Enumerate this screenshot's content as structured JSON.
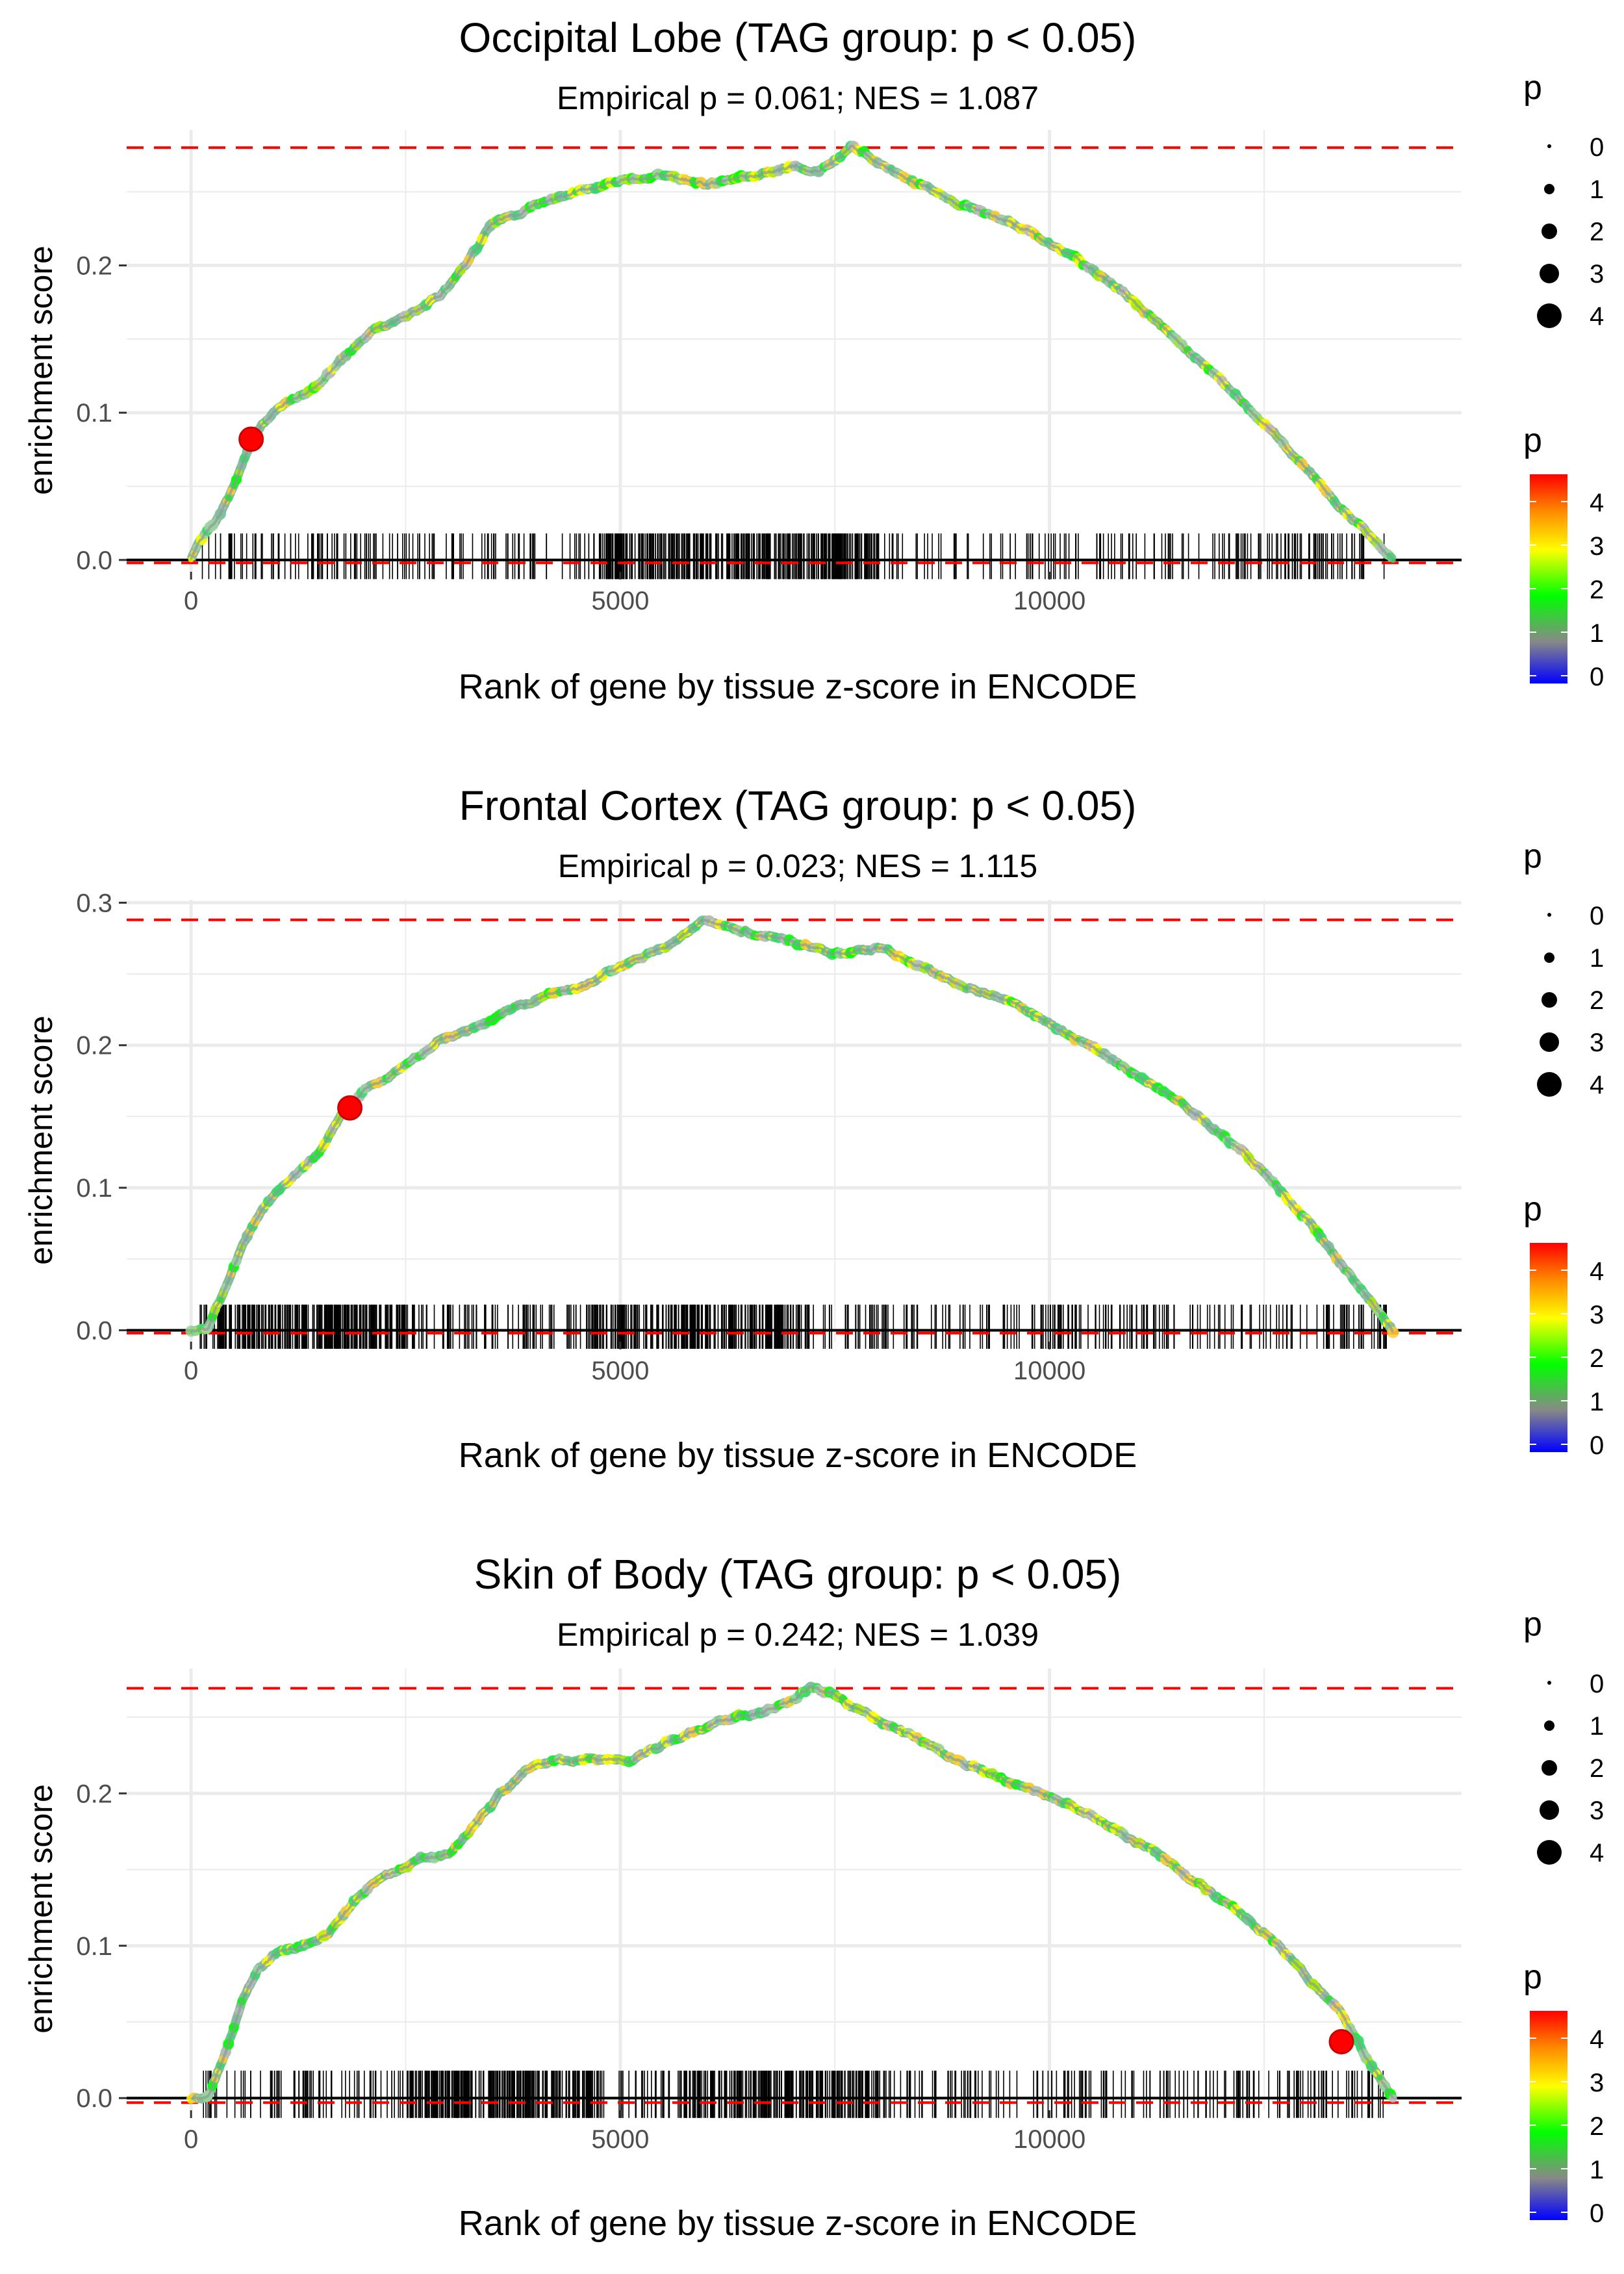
{
  "colors": {
    "gridline": "#ebebeb",
    "hline_dashed": "#ff0000",
    "zero_line": "#000000",
    "ticks": "#000000",
    "highlight_point": "#ff0000",
    "highlight_stroke": "#cc0000",
    "gradient": [
      "#0000ff",
      "#888888",
      "#00ff00",
      "#ffff00",
      "#ff8c00",
      "#ff0000"
    ]
  },
  "chart_data": [
    {
      "type": "line",
      "title": "Occipital Lobe (TAG group: p < 0.05)",
      "subtitle": "Empirical p = 0.061; NES = 1.087",
      "xlabel": "Rank of gene by tissue z-score in ENCODE",
      "ylabel": "enrichment score",
      "xlim": [
        -750,
        14800
      ],
      "ylim": [
        -0.008,
        0.292
      ],
      "x_ticks": [
        0,
        5000,
        10000
      ],
      "x_tick_labels": [
        "0",
        "5000",
        "10000"
      ],
      "y_ticks": [
        0.0,
        0.1,
        0.2
      ],
      "y_tick_labels": [
        "0.0",
        "0.1",
        "0.2"
      ],
      "max_es": 0.28,
      "min_es": -0.002,
      "curve": {
        "x": [
          0,
          100,
          300,
          500,
          700,
          900,
          1200,
          1500,
          1800,
          2100,
          2500,
          2900,
          3200,
          3500,
          4000,
          4500,
          5000,
          5500,
          6000,
          6500,
          7000,
          7300,
          7550,
          7700,
          8000,
          8500,
          9000,
          9500,
          10000,
          10500,
          11000,
          11500,
          12000,
          12500,
          13000,
          13500,
          14000
        ],
        "y": [
          0.0,
          0.012,
          0.028,
          0.05,
          0.082,
          0.097,
          0.11,
          0.12,
          0.14,
          0.155,
          0.165,
          0.18,
          0.2,
          0.228,
          0.24,
          0.25,
          0.258,
          0.262,
          0.255,
          0.262,
          0.268,
          0.265,
          0.272,
          0.28,
          0.27,
          0.255,
          0.24,
          0.23,
          0.215,
          0.198,
          0.175,
          0.148,
          0.122,
          0.092,
          0.062,
          0.03,
          0.0
        ]
      },
      "highlight": {
        "x": 700,
        "y": 0.082
      },
      "gene_ranks": {
        "start": 100,
        "end": 13900,
        "count": 620,
        "dense_ranges": [
          [
            4800,
            8000
          ]
        ],
        "y_range": [
          -0.013,
          0.018
        ]
      },
      "legend_size": {
        "title": "p",
        "labels": [
          "0",
          "1",
          "2",
          "3",
          "4"
        ]
      },
      "legend_color": {
        "title": "p",
        "labels": [
          "4",
          "3",
          "2",
          "1",
          "0"
        ]
      }
    },
    {
      "type": "line",
      "title": "Frontal Cortex (TAG group: p < 0.05)",
      "subtitle": "Empirical p = 0.023; NES = 1.115",
      "xlabel": "Rank of gene by tissue z-score in ENCODE",
      "ylabel": "enrichment score",
      "xlim": [
        -750,
        14800
      ],
      "ylim": [
        -0.008,
        0.302
      ],
      "x_ticks": [
        0,
        5000,
        10000
      ],
      "x_tick_labels": [
        "0",
        "5000",
        "10000"
      ],
      "y_ticks": [
        0.0,
        0.1,
        0.2,
        0.3
      ],
      "y_tick_labels": [
        "0.0",
        "0.1",
        "0.2",
        "0.3"
      ],
      "max_es": 0.288,
      "min_es": -0.002,
      "curve": {
        "x": [
          0,
          200,
          400,
          600,
          800,
          1000,
          1200,
          1500,
          1800,
          2000,
          2300,
          2600,
          2900,
          3200,
          3500,
          3800,
          4200,
          4500,
          4800,
          5100,
          5400,
          5700,
          6000,
          6300,
          6600,
          7000,
          7500,
          8000,
          8500,
          9000,
          9500,
          10000,
          10500,
          11000,
          11500,
          12000,
          12500,
          13000,
          13500,
          14000
        ],
        "y": [
          0.0,
          0.0,
          0.03,
          0.06,
          0.082,
          0.1,
          0.108,
          0.125,
          0.155,
          0.168,
          0.178,
          0.19,
          0.205,
          0.21,
          0.218,
          0.228,
          0.235,
          0.24,
          0.25,
          0.258,
          0.265,
          0.275,
          0.288,
          0.282,
          0.278,
          0.273,
          0.265,
          0.268,
          0.255,
          0.242,
          0.232,
          0.215,
          0.198,
          0.18,
          0.162,
          0.138,
          0.11,
          0.078,
          0.04,
          0.0
        ]
      },
      "highlight": {
        "x": 1850,
        "y": 0.156
      },
      "gene_ranks": {
        "start": 100,
        "end": 13950,
        "count": 760,
        "dense_ranges": [
          [
            4600,
            7200
          ],
          [
            300,
            2600
          ]
        ],
        "y_range": [
          -0.013,
          0.018
        ]
      },
      "legend_size": {
        "title": "p",
        "labels": [
          "0",
          "1",
          "2",
          "3",
          "4"
        ]
      },
      "legend_color": {
        "title": "p",
        "labels": [
          "4",
          "3",
          "2",
          "1",
          "0"
        ]
      }
    },
    {
      "type": "line",
      "title": "Skin of Body (TAG group: p < 0.05)",
      "subtitle": "Empirical p = 0.242; NES = 1.039",
      "xlabel": "Rank of gene by tissue z-score in ENCODE",
      "ylabel": "enrichment score",
      "xlim": [
        -750,
        14800
      ],
      "ylim": [
        -0.008,
        0.282
      ],
      "x_ticks": [
        0,
        5000,
        10000
      ],
      "x_tick_labels": [
        "0",
        "5000",
        "10000"
      ],
      "y_ticks": [
        0.0,
        0.1,
        0.2
      ],
      "y_tick_labels": [
        "0.0",
        "0.1",
        "0.2"
      ],
      "max_es": 0.269,
      "min_es": -0.003,
      "curve": {
        "x": [
          0,
          200,
          400,
          600,
          800,
          1000,
          1300,
          1600,
          1900,
          2200,
          2400,
          2700,
          3000,
          3300,
          3600,
          3900,
          4200,
          4500,
          4800,
          5100,
          5400,
          5700,
          6000,
          6300,
          6600,
          6900,
          7200,
          7500,
          8000,
          8500,
          9000,
          9500,
          10000,
          10500,
          11000,
          11500,
          12000,
          12500,
          13000,
          13400,
          13700,
          14000
        ],
        "y": [
          0.0,
          0.0,
          0.03,
          0.065,
          0.085,
          0.095,
          0.1,
          0.108,
          0.13,
          0.145,
          0.15,
          0.158,
          0.16,
          0.18,
          0.2,
          0.215,
          0.222,
          0.222,
          0.223,
          0.222,
          0.23,
          0.238,
          0.245,
          0.25,
          0.252,
          0.258,
          0.269,
          0.263,
          0.248,
          0.235,
          0.22,
          0.208,
          0.198,
          0.185,
          0.168,
          0.15,
          0.13,
          0.108,
          0.08,
          0.055,
          0.025,
          0.0
        ]
      },
      "highlight": {
        "x": 13400,
        "y": 0.037
      },
      "gene_ranks": {
        "start": 100,
        "end": 13900,
        "count": 760,
        "dense_ranges": [
          [
            2500,
            4700
          ],
          [
            5700,
            8000
          ]
        ],
        "y_range": [
          -0.013,
          0.018
        ]
      },
      "legend_size": {
        "title": "p",
        "labels": [
          "0",
          "1",
          "2",
          "3",
          "4"
        ]
      },
      "legend_color": {
        "title": "p",
        "labels": [
          "4",
          "3",
          "2",
          "1",
          "0"
        ]
      }
    }
  ]
}
